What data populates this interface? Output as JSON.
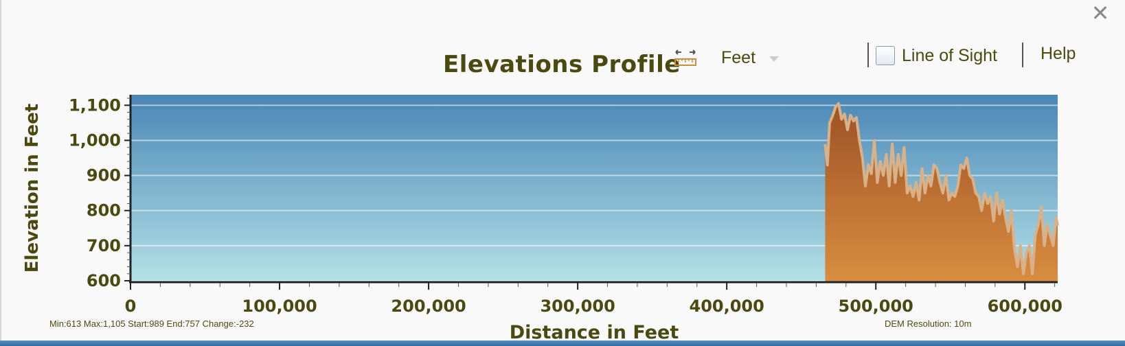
{
  "window": {
    "close_label": "✕"
  },
  "header": {
    "title": "Elevations Profile",
    "units_label": "Feet",
    "line_of_sight_label": "Line of Sight",
    "help_label": "Help"
  },
  "footer": {
    "stats": "Min:613 Max:1,105 Start:989 End:757 Change:-232",
    "dem_resolution": "DEM Resolution: 10m"
  },
  "colors": {
    "plot_top": "#4a86b6",
    "plot_bottom": "#b3e1e7",
    "fill_top": "#9e5225",
    "fill_bottom": "#d98d40",
    "terrain_line": "#d9b189",
    "text": "#4a4a10"
  },
  "chart_data": {
    "type": "area",
    "xlabel": "Distance in Feet",
    "ylabel": "Elevation in Feet",
    "xlim": [
      0,
      622000
    ],
    "ylim": [
      598,
      1130
    ],
    "x_ticks": [
      0,
      100000,
      200000,
      300000,
      400000,
      500000,
      600000
    ],
    "x_tick_labels": [
      "0",
      "100,000",
      "200,000",
      "300,000",
      "400,000",
      "500,000",
      "600,000"
    ],
    "y_ticks": [
      600,
      700,
      800,
      900,
      1000,
      1100
    ],
    "y_tick_labels": [
      "600",
      "700",
      "800",
      "900",
      "1,000",
      "1,100"
    ],
    "grid": true,
    "series": [
      {
        "x": [
          466000,
          467500,
          469000,
          471000,
          473000,
          475000,
          477000,
          479000,
          481000,
          483000,
          485000,
          487000,
          489000,
          491000,
          493000,
          495000,
          497000,
          499000,
          501000,
          503000,
          505000,
          507000,
          509000,
          511000,
          513000,
          515000,
          517000,
          519000,
          521000,
          523000,
          525000,
          527000,
          529000,
          531000,
          533000,
          535000,
          537000,
          539000,
          541000,
          543000,
          545000,
          547000,
          549000,
          551000,
          553000,
          555000,
          557000,
          559000,
          561000,
          563000,
          565000,
          567000,
          569000,
          571000,
          573000,
          575000,
          577000,
          579000,
          581000,
          583000,
          585000,
          587000,
          589000,
          591000,
          593000,
          595000,
          597000,
          599000,
          601000,
          603000,
          605000,
          607000,
          609000,
          611000,
          613000,
          615000,
          617000,
          619000,
          621000,
          622000
        ],
        "y": [
          989,
          930,
          1050,
          1070,
          1095,
          1105,
          1060,
          1075,
          1030,
          1072,
          1055,
          1065,
          1000,
          950,
          870,
          930,
          905,
          1000,
          880,
          940,
          900,
          960,
          870,
          990,
          880,
          960,
          900,
          980,
          850,
          870,
          840,
          880,
          830,
          920,
          850,
          900,
          870,
          930,
          920,
          880,
          850,
          900,
          830,
          850,
          840,
          870,
          930,
          920,
          950,
          900,
          890,
          850,
          840,
          800,
          850,
          820,
          840,
          770,
          850,
          790,
          830,
          780,
          740,
          800,
          690,
          640,
          700,
          620,
          680,
          700,
          620,
          730,
          760,
          810,
          700,
          760,
          730,
          700,
          780,
          757
        ]
      }
    ]
  }
}
